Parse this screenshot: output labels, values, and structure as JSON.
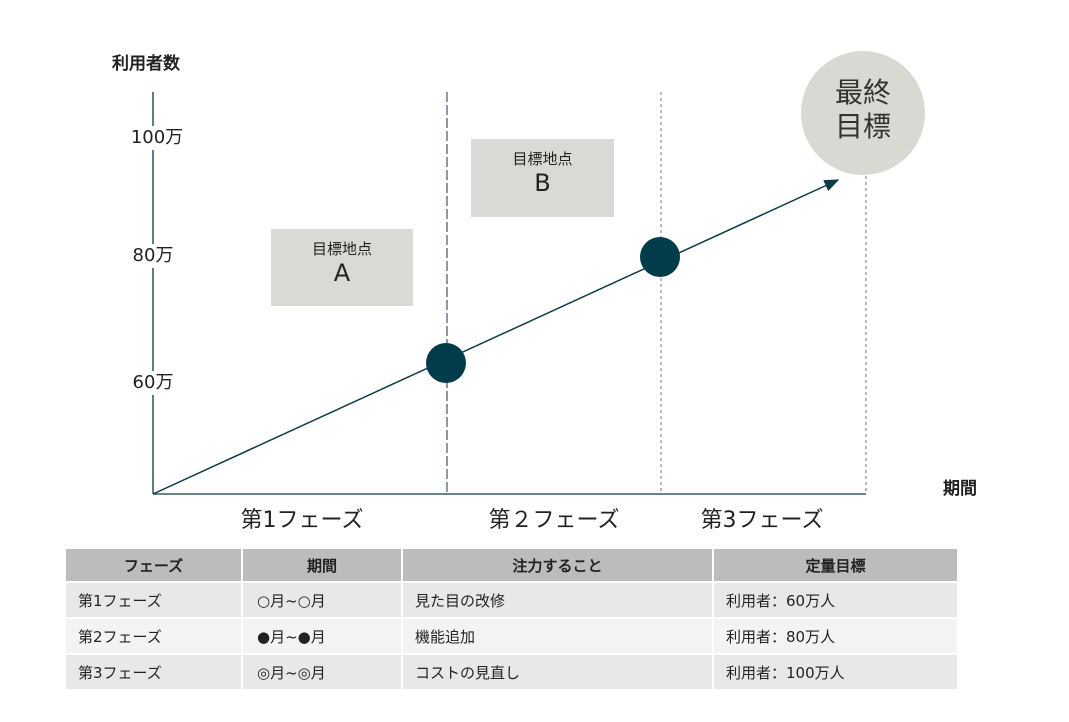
{
  "y_axis_label": "利用者数",
  "x_axis_label": "期間",
  "y_ticks": [
    "100万",
    "80万",
    "60万"
  ],
  "goals": [
    {
      "title": "目標地点",
      "letter": "A"
    },
    {
      "title": "目標地点",
      "letter": "B"
    }
  ],
  "final_goal": "最終\n目標",
  "final_goal_lines": [
    "最終",
    "目標"
  ],
  "phases": [
    "第1フェーズ",
    "第２フェーズ",
    "第3フェーズ"
  ],
  "colors": {
    "line": "#0e3a47",
    "dot": "#023c4a",
    "box": "#d9d9d5",
    "header": "#bcbcbc"
  },
  "table": {
    "headers": [
      "フェーズ",
      "期間",
      "注力すること",
      "定量目標"
    ],
    "rows": [
      [
        "第1フェーズ",
        "○月~○月",
        "見た目の改修",
        "利用者：60万人"
      ],
      [
        "第2フェーズ",
        "●月~●月",
        "機能追加",
        "利用者：80万人"
      ],
      [
        "第3フェーズ",
        "◎月~◎月",
        "コストの見直し",
        "利用者：100万人"
      ]
    ]
  }
}
